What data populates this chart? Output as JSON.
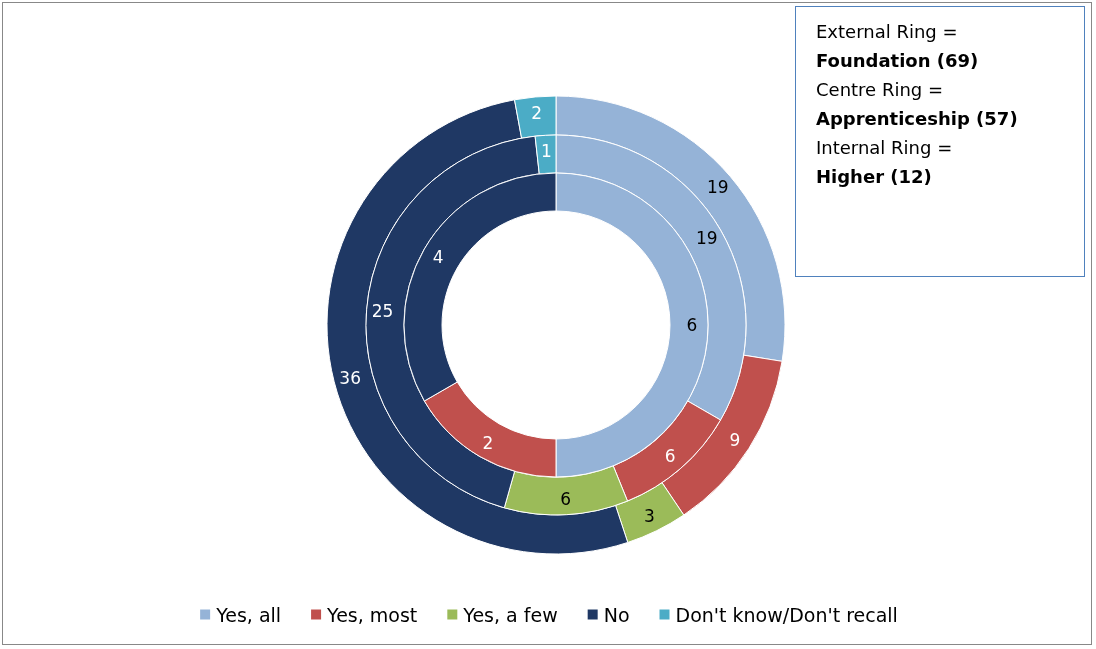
{
  "chart_data": {
    "type": "donut",
    "categories": [
      "Yes, all",
      "Yes, most",
      "Yes, a few",
      "No",
      "Don't know/Don't recall"
    ],
    "colors": [
      "#95b3d7",
      "#c0504d",
      "#9bbb59",
      "#1f3864",
      "#4bacc6"
    ],
    "series": [
      {
        "values": [
          19,
          9,
          3,
          36,
          2
        ]
      },
      {
        "values": [
          19,
          6,
          6,
          25,
          1
        ]
      },
      {
        "values": [
          6,
          2,
          null,
          4,
          null
        ]
      }
    ],
    "data_labels": true,
    "legend": "bottom",
    "annotations": [
      "External Ring =",
      "Foundation (69)",
      "Centre Ring =",
      "Apprenticeship (57)",
      "Internal Ring =",
      "Higher (12)"
    ]
  }
}
